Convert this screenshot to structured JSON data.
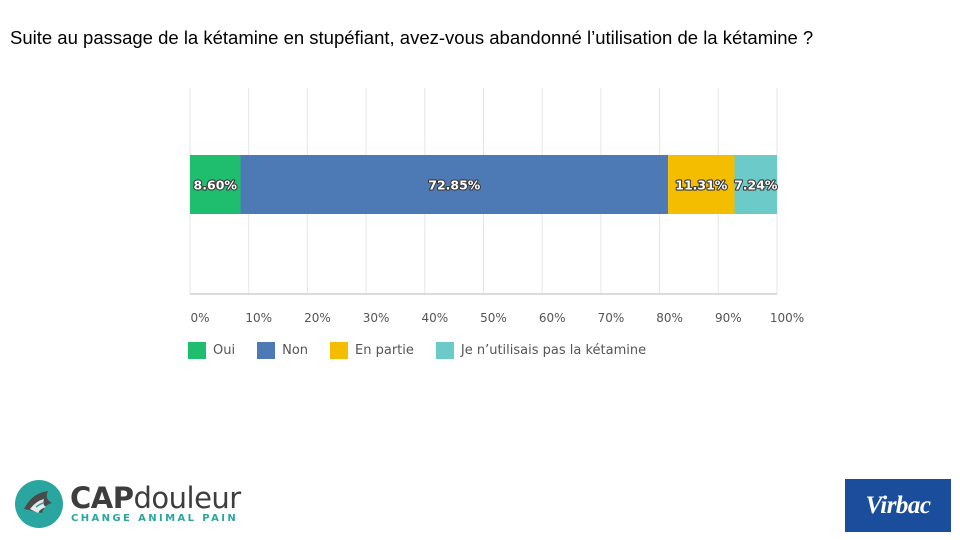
{
  "title": "Suite au passage de la kétamine en stupéfiant, avez-vous abandonné l’utilisation de la kétamine ?",
  "chart_data": {
    "type": "bar",
    "orientation": "horizontal",
    "stacked": true,
    "categories": [
      ""
    ],
    "series": [
      {
        "name": "Oui",
        "values": [
          8.6
        ],
        "label": "8.60%",
        "color": "#1fbe6f"
      },
      {
        "name": "Non",
        "values": [
          72.85
        ],
        "label": "72.85%",
        "color": "#4d7ab5"
      },
      {
        "name": "En partie",
        "values": [
          11.31
        ],
        "label": "11.31%",
        "color": "#f5bd00"
      },
      {
        "name": "Je n’utilisais pas la kétamine",
        "values": [
          7.24
        ],
        "label": "7.24%",
        "color": "#6ccac9"
      }
    ],
    "xlim": [
      0,
      100
    ],
    "xticks": [
      "0%",
      "10%",
      "20%",
      "30%",
      "40%",
      "50%",
      "60%",
      "70%",
      "80%",
      "90%",
      "100%"
    ],
    "grid": true,
    "legend_position": "bottom-left"
  },
  "logos": {
    "left_brand": "CAP",
    "left_brand_rest": "douleur",
    "left_tagline": "CHANGE ANIMAL PAIN",
    "right_brand": "Virbac"
  }
}
